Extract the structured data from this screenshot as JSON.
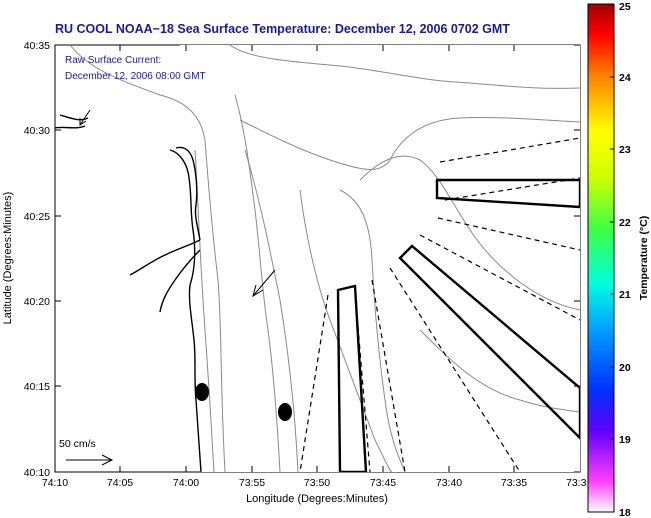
{
  "title": "RU COOL  NOAA−18  Sea Surface Temperature:  December 12, 2006 0702 GMT",
  "annotation": {
    "line1": "Raw Surface Current:",
    "line2": "December 12, 2006 08:00 GMT"
  },
  "scale_label": "50 cm/s",
  "axes": {
    "xlabel": "Longitude (Degrees:Minutes)",
    "ylabel": "Latitude (Degrees:Minutes)",
    "xticks": [
      "74:10",
      "74:05",
      "74:00",
      "73:55",
      "73:50",
      "73:45",
      "73:40",
      "73:35",
      "73:3"
    ],
    "yticks": [
      "40:10",
      "40:15",
      "40:20",
      "40:25",
      "40:30",
      "40:35"
    ]
  },
  "colorbar": {
    "label": "Temperature (°C)",
    "ticks": [
      "18",
      "19",
      "20",
      "21",
      "22",
      "23",
      "24",
      "25"
    ],
    "range": [
      18,
      25
    ],
    "colors": [
      "#ff00ff",
      "#0000ff",
      "#00c0ff",
      "#00ffb0",
      "#80ff00",
      "#ffff00",
      "#ff8000",
      "#ff0000",
      "#800000"
    ]
  },
  "colors": {
    "title": "#1a1a9a",
    "annotation": "#1a1a9a",
    "land_outline": "#000000",
    "contours": "#888888"
  },
  "markers": [
    {
      "name": "dot-west",
      "type": "filled-ellipse"
    },
    {
      "name": "dot-east",
      "type": "filled-ellipse"
    }
  ]
}
